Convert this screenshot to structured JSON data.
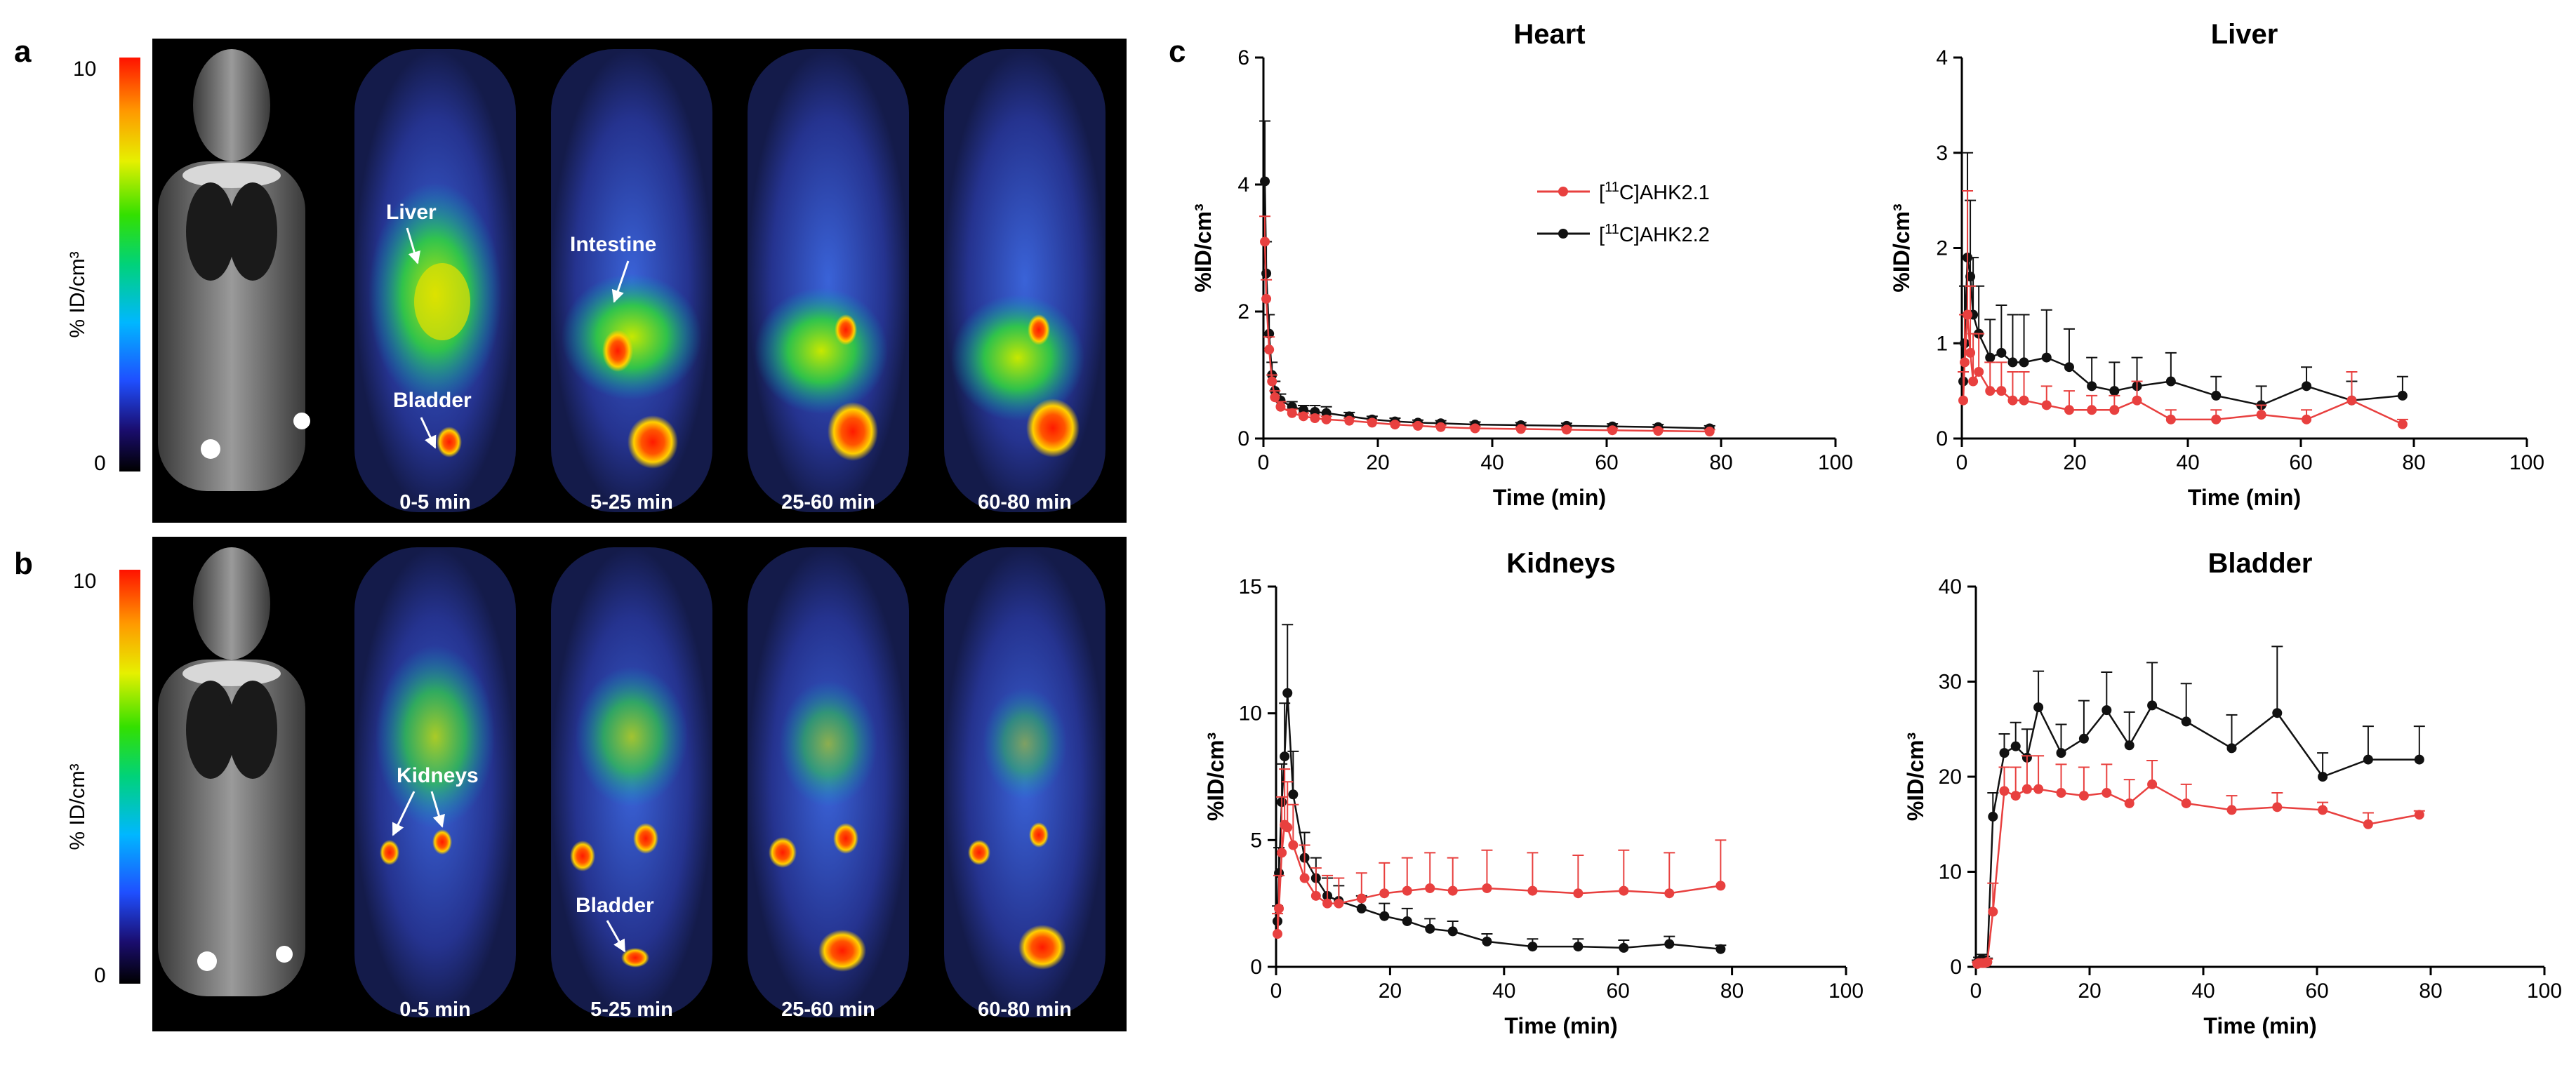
{
  "panels": {
    "a": {
      "letter": "a",
      "colorbar": {
        "max_label": "10",
        "min_label": "0",
        "unit_label": "% ID/cm³"
      },
      "annotations": [
        "Liver",
        "Intestine",
        "Bladder"
      ],
      "time_labels": [
        "0-5 min",
        "5-25 min",
        "25-60 min",
        "60-80 min"
      ]
    },
    "b": {
      "letter": "b",
      "colorbar": {
        "max_label": "10",
        "min_label": "0",
        "unit_label": "% ID/cm³"
      },
      "annotations": [
        "Kidneys",
        "Bladder"
      ],
      "time_labels": [
        "0-5 min",
        "5-25 min",
        "25-60 min",
        "60-80 min"
      ]
    },
    "c": {
      "letter": "c"
    }
  },
  "legend": {
    "series": [
      {
        "prefix": "[",
        "sup": "11",
        "suffix": "C]AHK2.1",
        "color": "#e8403f"
      },
      {
        "prefix": "[",
        "sup": "11",
        "suffix": "C]AHK2.2",
        "color": "#111111"
      }
    ]
  },
  "chart_data": [
    {
      "type": "line",
      "title": "Heart",
      "xlabel": "Time (min)",
      "ylabel": "%ID/cm³",
      "xlim": [
        0,
        100
      ],
      "ylim": [
        0,
        6
      ],
      "xticks": [
        0,
        20,
        40,
        60,
        80,
        100
      ],
      "yticks": [
        0,
        2,
        4,
        6
      ],
      "series": [
        {
          "name": "[11C]AHK2.1",
          "color": "#e8403f",
          "x": [
            0.25,
            0.5,
            1,
            1.5,
            2,
            3,
            5,
            7,
            9,
            11,
            15,
            19,
            23,
            27,
            31,
            37,
            45,
            53,
            61,
            69,
            78
          ],
          "y": [
            3.1,
            2.2,
            1.4,
            0.9,
            0.65,
            0.5,
            0.4,
            0.35,
            0.32,
            0.3,
            0.28,
            0.25,
            0.22,
            0.2,
            0.18,
            0.16,
            0.15,
            0.14,
            0.13,
            0.12,
            0.11
          ],
          "err": [
            0.4,
            0.3,
            0.2,
            0.1,
            0.1,
            0.08,
            0.06,
            0.05,
            0.05,
            0.05,
            0.04,
            0.04,
            0.03,
            0.03,
            0.03,
            0.03,
            0.03,
            0.03,
            0.03,
            0.03,
            0.03
          ]
        },
        {
          "name": "[11C]AHK2.2",
          "color": "#111111",
          "x": [
            0.25,
            0.5,
            1,
            1.5,
            2,
            3,
            5,
            7,
            9,
            11,
            15,
            19,
            23,
            27,
            31,
            37,
            45,
            53,
            61,
            69,
            78
          ],
          "y": [
            4.05,
            2.6,
            1.65,
            1.0,
            0.75,
            0.6,
            0.5,
            0.45,
            0.42,
            0.4,
            0.35,
            0.3,
            0.27,
            0.25,
            0.24,
            0.22,
            0.21,
            0.2,
            0.19,
            0.18,
            0.16
          ],
          "err": [
            0.95,
            0.5,
            0.3,
            0.2,
            0.15,
            0.1,
            0.08,
            0.07,
            0.1,
            0.1,
            0.06,
            0.05,
            0.05,
            0.04,
            0.04,
            0.04,
            0.04,
            0.04,
            0.04,
            0.04,
            0.04
          ]
        }
      ]
    },
    {
      "type": "line",
      "title": "Liver",
      "xlabel": "Time (min)",
      "ylabel": "%ID/cm³",
      "xlim": [
        0,
        100
      ],
      "ylim": [
        0,
        4
      ],
      "xticks": [
        0,
        20,
        40,
        60,
        80,
        100
      ],
      "yticks": [
        0,
        1,
        2,
        3,
        4
      ],
      "series": [
        {
          "name": "[11C]AHK2.1",
          "color": "#e8403f",
          "x": [
            0.25,
            0.5,
            1,
            1.5,
            2,
            3,
            5,
            7,
            9,
            11,
            15,
            19,
            23,
            27,
            31,
            37,
            45,
            53,
            61,
            69,
            78
          ],
          "y": [
            0.4,
            0.8,
            1.3,
            0.9,
            0.6,
            0.7,
            0.5,
            0.5,
            0.4,
            0.4,
            0.35,
            0.3,
            0.3,
            0.3,
            0.4,
            0.2,
            0.2,
            0.25,
            0.2,
            0.4,
            0.15
          ],
          "err": [
            0.3,
            0.5,
            1.3,
            0.7,
            0.5,
            0.4,
            0.3,
            0.3,
            0.3,
            0.3,
            0.2,
            0.2,
            0.15,
            0.15,
            0.2,
            0.1,
            0.1,
            0.1,
            0.1,
            0.3,
            0.05
          ]
        },
        {
          "name": "[11C]AHK2.2",
          "color": "#111111",
          "x": [
            0.25,
            0.5,
            1,
            1.5,
            2,
            3,
            5,
            7,
            9,
            11,
            15,
            19,
            23,
            27,
            31,
            37,
            45,
            53,
            61,
            69,
            78
          ],
          "y": [
            0.6,
            1.0,
            1.9,
            1.7,
            1.3,
            1.1,
            0.85,
            0.9,
            0.8,
            0.8,
            0.85,
            0.75,
            0.55,
            0.5,
            0.55,
            0.6,
            0.45,
            0.35,
            0.55,
            0.4,
            0.45
          ],
          "err": [
            0.4,
            0.6,
            1.1,
            0.8,
            0.6,
            0.5,
            0.4,
            0.5,
            0.5,
            0.5,
            0.5,
            0.4,
            0.3,
            0.3,
            0.3,
            0.3,
            0.2,
            0.2,
            0.2,
            0.2,
            0.2
          ]
        }
      ]
    },
    {
      "type": "line",
      "title": "Kidneys",
      "xlabel": "Time (min)",
      "ylabel": "%ID/cm³",
      "xlim": [
        0,
        100
      ],
      "ylim": [
        0,
        15
      ],
      "xticks": [
        0,
        20,
        40,
        60,
        80,
        100
      ],
      "yticks": [
        0,
        5,
        10,
        15
      ],
      "series": [
        {
          "name": "[11C]AHK2.1",
          "color": "#e8403f",
          "x": [
            0.25,
            0.5,
            1,
            1.5,
            2,
            3,
            5,
            7,
            9,
            11,
            15,
            19,
            23,
            27,
            31,
            37,
            45,
            53,
            61,
            69,
            78
          ],
          "y": [
            1.3,
            2.3,
            4.5,
            5.6,
            5.5,
            4.8,
            3.5,
            2.8,
            2.5,
            2.5,
            2.7,
            2.9,
            3.0,
            3.1,
            3.0,
            3.1,
            3.0,
            2.9,
            3.0,
            2.9,
            3.2
          ],
          "err": [
            0.8,
            1.3,
            2.2,
            2.2,
            1.8,
            1.6,
            1.3,
            1.1,
            1.1,
            1.0,
            1.0,
            1.2,
            1.3,
            1.4,
            1.3,
            1.5,
            1.5,
            1.5,
            1.6,
            1.6,
            1.8
          ]
        },
        {
          "name": "[11C]AHK2.2",
          "color": "#111111",
          "x": [
            0.25,
            0.5,
            1,
            1.5,
            2,
            3,
            5,
            7,
            9,
            11,
            15,
            19,
            23,
            27,
            31,
            37,
            45,
            53,
            61,
            69,
            78
          ],
          "y": [
            1.8,
            3.7,
            6.5,
            8.3,
            10.8,
            6.8,
            4.3,
            3.5,
            2.8,
            2.6,
            2.3,
            2.0,
            1.8,
            1.5,
            1.4,
            1.0,
            0.8,
            0.8,
            0.75,
            0.9,
            0.7
          ],
          "err": [
            0.6,
            1.0,
            1.5,
            2.1,
            2.7,
            1.7,
            1.0,
            0.8,
            0.7,
            0.6,
            0.5,
            0.5,
            0.5,
            0.4,
            0.4,
            0.3,
            0.3,
            0.3,
            0.3,
            0.3,
            0.15
          ]
        }
      ]
    },
    {
      "type": "line",
      "title": "Bladder",
      "xlabel": "Time (min)",
      "ylabel": "%ID/cm³",
      "xlim": [
        0,
        100
      ],
      "ylim": [
        0,
        40
      ],
      "xticks": [
        0,
        20,
        40,
        60,
        80,
        100
      ],
      "yticks": [
        0,
        10,
        20,
        30,
        40
      ],
      "series": [
        {
          "name": "[11C]AHK2.1",
          "color": "#e8403f",
          "x": [
            0.25,
            0.5,
            1,
            1.5,
            2,
            3,
            5,
            7,
            9,
            11,
            15,
            19,
            23,
            27,
            31,
            37,
            45,
            53,
            61,
            69,
            78
          ],
          "y": [
            0.3,
            0.4,
            0.4,
            0.4,
            0.5,
            5.8,
            18.5,
            18.0,
            18.7,
            18.7,
            18.3,
            18.0,
            18.3,
            17.2,
            19.2,
            17.2,
            16.5,
            16.8,
            16.5,
            15.0,
            16.0
          ],
          "err": [
            0.2,
            0.2,
            0.2,
            0.2,
            0.3,
            3.0,
            2.5,
            3.0,
            3.5,
            3.5,
            3.0,
            3.0,
            3.0,
            2.5,
            2.5,
            2.0,
            1.5,
            1.5,
            0.8,
            1.2,
            0.4
          ]
        },
        {
          "name": "[11C]AHK2.2",
          "color": "#111111",
          "x": [
            0.25,
            0.5,
            1,
            1.5,
            2,
            3,
            5,
            7,
            9,
            11,
            15,
            19,
            23,
            27,
            31,
            37,
            45,
            53,
            61,
            69,
            78
          ],
          "y": [
            0.4,
            0.6,
            0.8,
            0.7,
            0.5,
            15.8,
            22.5,
            23.2,
            22.0,
            27.3,
            22.5,
            24.0,
            27.0,
            23.3,
            27.5,
            25.8,
            23.0,
            26.7,
            20.0,
            21.8,
            21.8
          ],
          "err": [
            0.3,
            0.4,
            0.5,
            0.4,
            0.4,
            2.5,
            2.0,
            2.5,
            3.0,
            3.8,
            3.0,
            4.0,
            4.0,
            3.5,
            4.5,
            4.0,
            3.5,
            7.0,
            2.5,
            3.5,
            3.5
          ]
        }
      ]
    }
  ]
}
